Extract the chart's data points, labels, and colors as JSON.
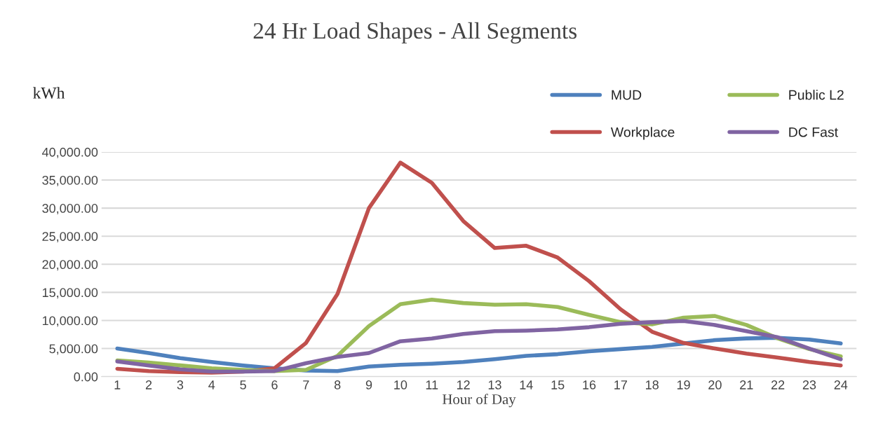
{
  "chart_data": {
    "type": "line",
    "title": "24 Hr Load Shapes - All Segments",
    "xlabel": "Hour of Day",
    "ylabel": "kWh",
    "categories": [
      "1",
      "2",
      "3",
      "4",
      "5",
      "6",
      "7",
      "8",
      "9",
      "10",
      "11",
      "12",
      "13",
      "14",
      "15",
      "16",
      "17",
      "18",
      "19",
      "20",
      "21",
      "22",
      "23",
      "24"
    ],
    "series": [
      {
        "name": "MUD",
        "color": "#4f81bd",
        "values": [
          5000,
          4200,
          3300,
          2600,
          2000,
          1500,
          1100,
          1000,
          1800,
          2100,
          2300,
          2600,
          3100,
          3700,
          4000,
          4500,
          4900,
          5300,
          5900,
          6500,
          6800,
          6900,
          6600,
          5900
        ]
      },
      {
        "name": "Workplace",
        "color": "#c0504d",
        "values": [
          1400,
          1000,
          800,
          700,
          900,
          1500,
          6000,
          14700,
          30000,
          38100,
          34500,
          27700,
          22900,
          23300,
          21200,
          17000,
          12000,
          8000,
          6000,
          5000,
          4100,
          3400,
          2600,
          2000
        ]
      },
      {
        "name": "Public L2",
        "color": "#9bbb59",
        "values": [
          2900,
          2500,
          2000,
          1500,
          1200,
          1000,
          1200,
          3700,
          9000,
          12900,
          13700,
          13100,
          12800,
          12900,
          12400,
          11000,
          9700,
          9300,
          10500,
          10800,
          9200,
          6800,
          4900,
          3600
        ]
      },
      {
        "name": "DC Fast",
        "color": "#8064a2",
        "values": [
          2700,
          2000,
          1300,
          900,
          900,
          1000,
          2400,
          3500,
          4200,
          6300,
          6800,
          7600,
          8100,
          8200,
          8400,
          8800,
          9400,
          9700,
          9900,
          9200,
          8100,
          7000,
          5000,
          3100
        ]
      }
    ],
    "ylim": [
      0,
      40000
    ],
    "yticks": [
      {
        "value": 0,
        "label": "0.00"
      },
      {
        "value": 5000,
        "label": "5,000.00"
      },
      {
        "value": 10000,
        "label": "10,000.00"
      },
      {
        "value": 15000,
        "label": "15,000.00"
      },
      {
        "value": 20000,
        "label": "20,000.00"
      },
      {
        "value": 25000,
        "label": "25,000.00"
      },
      {
        "value": 30000,
        "label": "30,000.00"
      },
      {
        "value": 35000,
        "label": "35,000.00"
      },
      {
        "value": 40000,
        "label": "40,000.00"
      }
    ],
    "grid": "y",
    "legend": "top right",
    "marker": "none",
    "line_style": "solid"
  }
}
